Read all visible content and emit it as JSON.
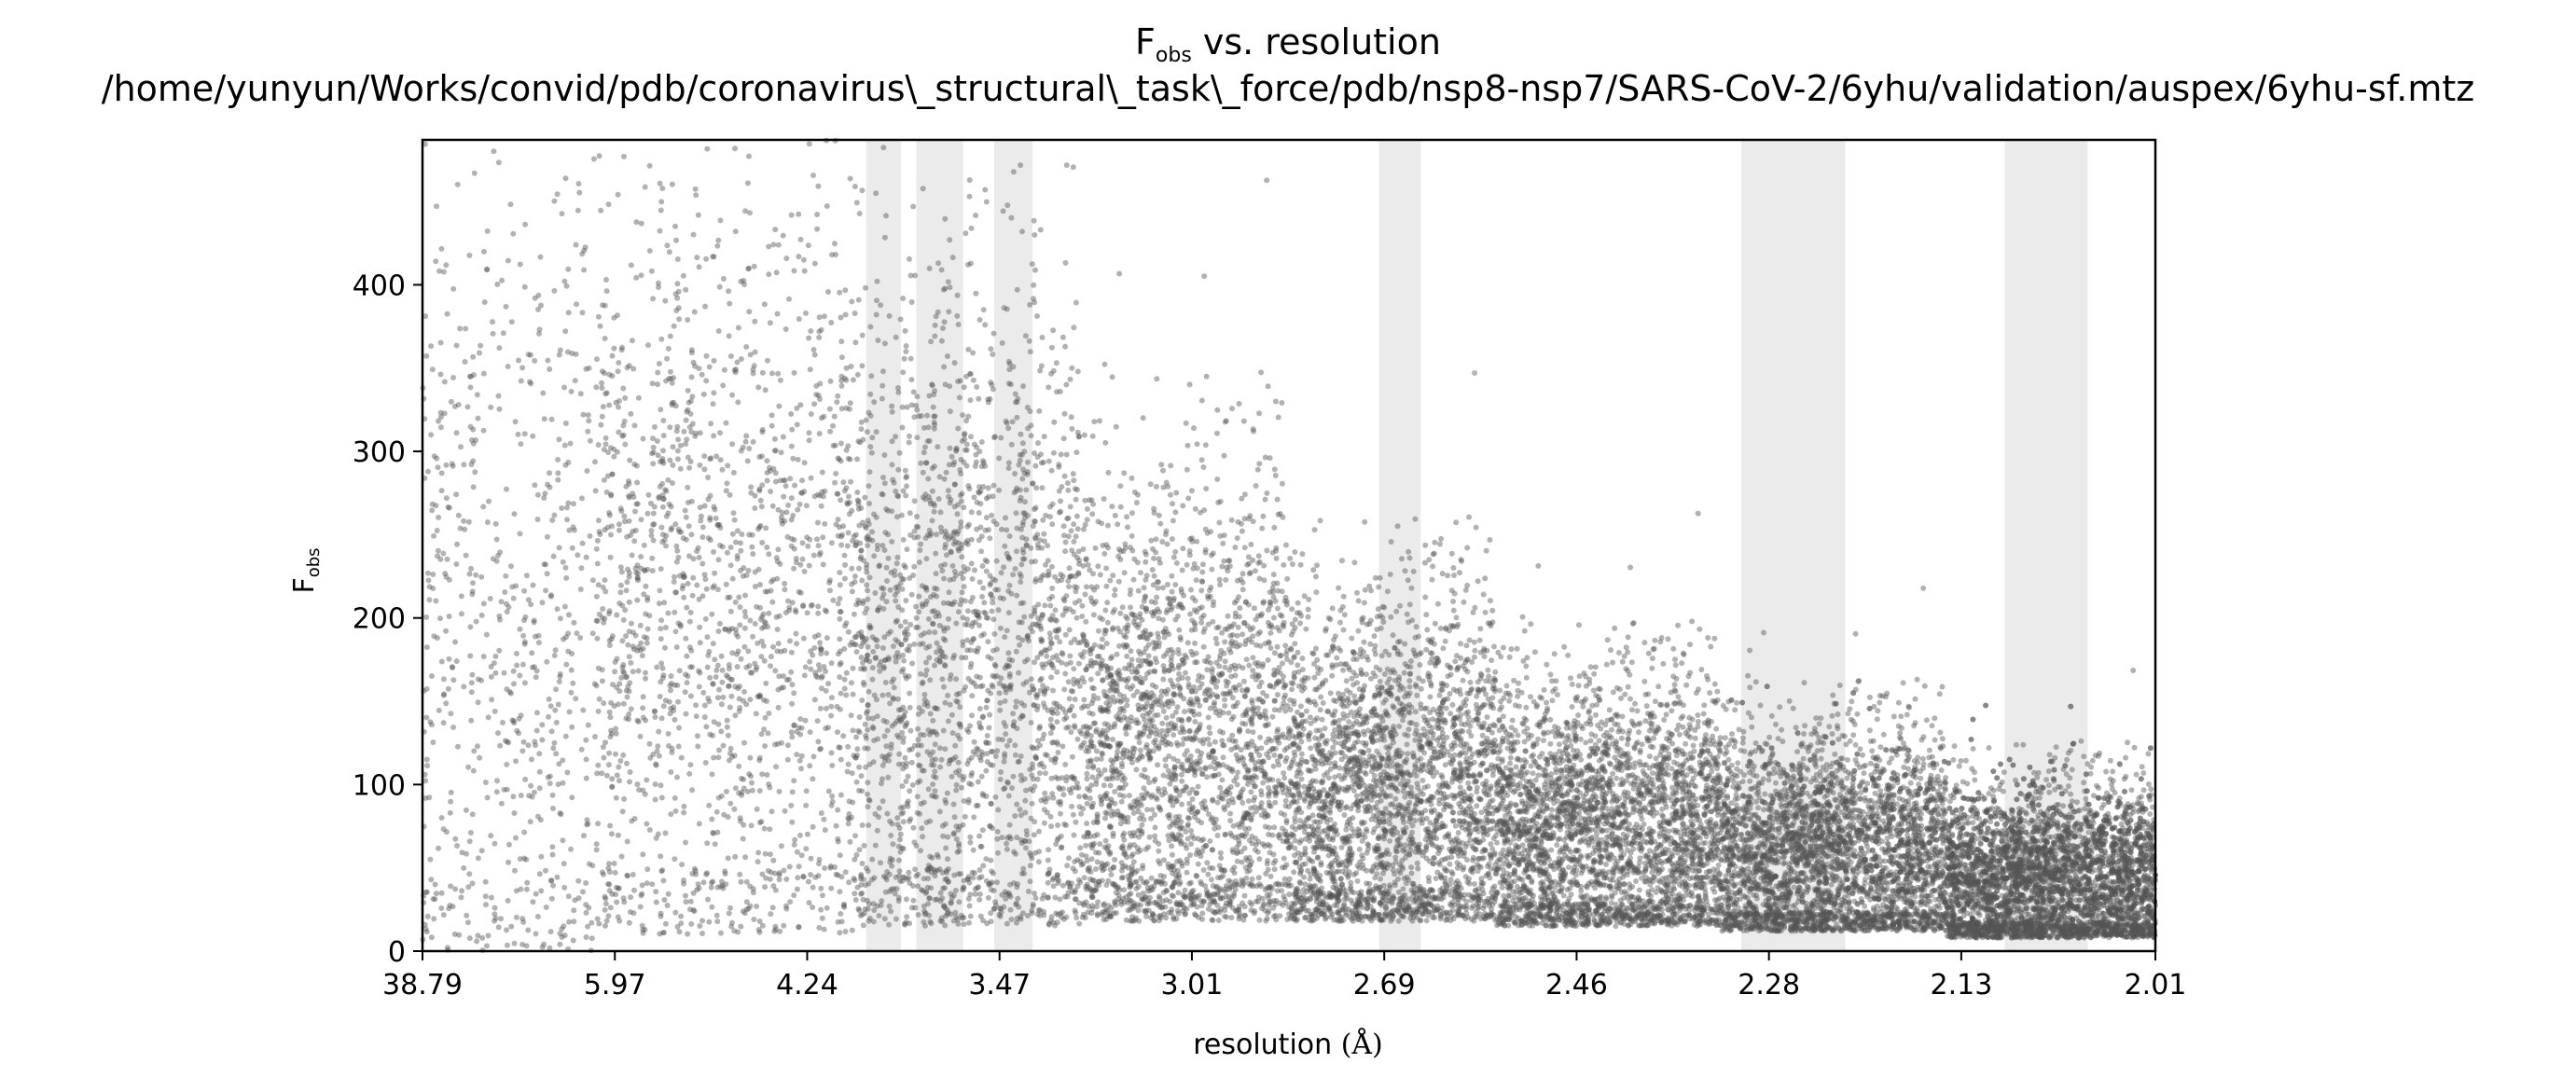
{
  "chart_data": {
    "type": "scatter",
    "title": {
      "symbol": "F",
      "subscript": "obs",
      "suffix": " vs. resolution",
      "path": "/home/yunyun/Works/convid/pdb/coronavirus\\_structural\\_task\\_force/pdb/nsp8-nsp7/SARS-CoV-2/6yhu/validation/auspex/6yhu-sf.mtz"
    },
    "xlabel": {
      "text": "resolution ",
      "unit": "(Å)"
    },
    "ylabel": {
      "symbol": "F",
      "subscript": "obs"
    },
    "xlim": [
      0,
      1
    ],
    "ylim": [
      0,
      487
    ],
    "grid": false,
    "x_ticks": [
      {
        "pos": 0.0,
        "label": "38.79"
      },
      {
        "pos": 0.111,
        "label": "5.97"
      },
      {
        "pos": 0.222,
        "label": "4.24"
      },
      {
        "pos": 0.333,
        "label": "3.47"
      },
      {
        "pos": 0.444,
        "label": "3.01"
      },
      {
        "pos": 0.555,
        "label": "2.69"
      },
      {
        "pos": 0.666,
        "label": "2.46"
      },
      {
        "pos": 0.777,
        "label": "2.28"
      },
      {
        "pos": 0.888,
        "label": "2.13"
      },
      {
        "pos": 1.0,
        "label": "2.01"
      }
    ],
    "y_ticks": [
      {
        "value": 0,
        "label": "0"
      },
      {
        "value": 100,
        "label": "100"
      },
      {
        "value": 200,
        "label": "200"
      },
      {
        "value": 300,
        "label": "300"
      },
      {
        "value": 400,
        "label": "400"
      }
    ],
    "ice_ring_bands": [
      [
        0.256,
        0.276
      ],
      [
        0.285,
        0.312
      ],
      [
        0.33,
        0.352
      ],
      [
        0.552,
        0.576
      ],
      [
        0.761,
        0.821
      ],
      [
        0.913,
        0.961
      ]
    ],
    "point_color": "#555555",
    "band_color": "#ebebeb",
    "point_density_profile": [
      {
        "x": [
          0.0,
          0.1
        ],
        "count": 650,
        "center": 190,
        "spread": 150,
        "floor": 0
      },
      {
        "x": [
          0.1,
          0.25
        ],
        "count": 1600,
        "center": 200,
        "spread": 130,
        "floor": 10
      },
      {
        "x": [
          0.25,
          0.38
        ],
        "count": 2000,
        "center": 170,
        "spread": 115,
        "floor": 15
      },
      {
        "x": [
          0.38,
          0.5
        ],
        "count": 2300,
        "center": 120,
        "spread": 80,
        "floor": 18
      },
      {
        "x": [
          0.5,
          0.62
        ],
        "count": 2700,
        "center": 90,
        "spread": 60,
        "floor": 18
      },
      {
        "x": [
          0.62,
          0.75
        ],
        "count": 3200,
        "center": 70,
        "spread": 45,
        "floor": 15
      },
      {
        "x": [
          0.75,
          0.88
        ],
        "count": 3600,
        "center": 55,
        "spread": 38,
        "floor": 12
      },
      {
        "x": [
          0.88,
          1.0
        ],
        "count": 4200,
        "center": 40,
        "spread": 30,
        "floor": 8
      }
    ]
  }
}
